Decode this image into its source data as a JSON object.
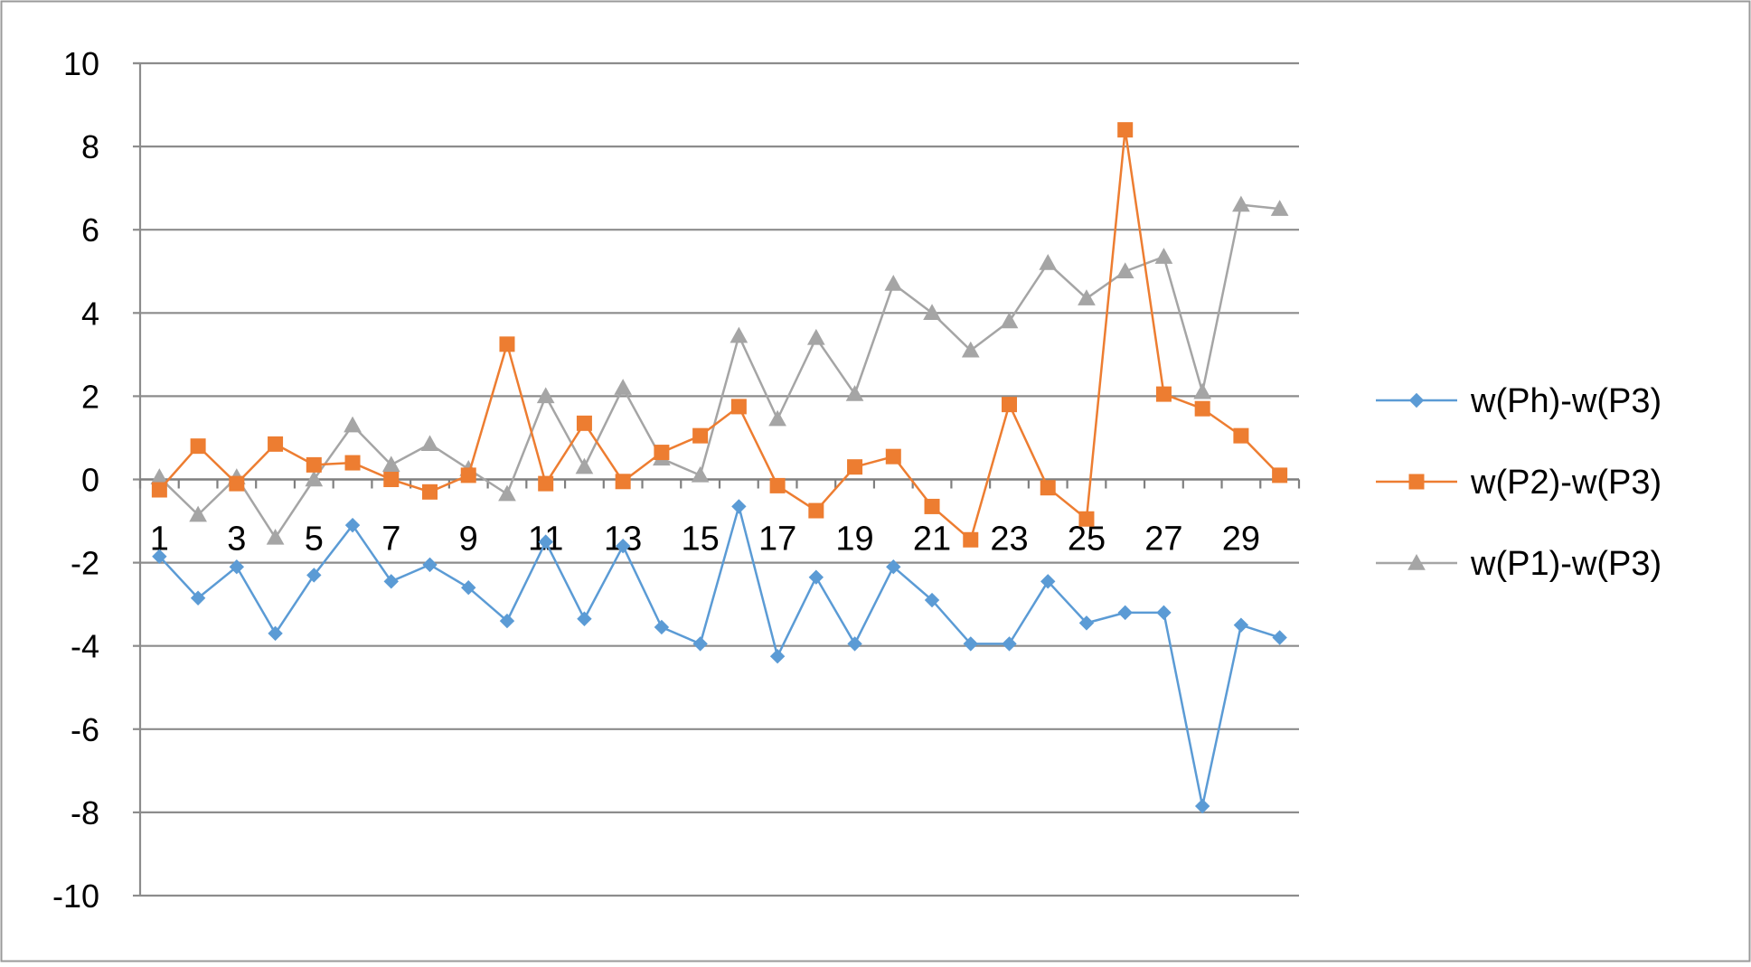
{
  "chart_data": {
    "type": "line",
    "title": "",
    "xlabel": "",
    "ylabel": "",
    "ylim": [
      -10,
      10
    ],
    "yticks": [
      10,
      8,
      6,
      4,
      2,
      0,
      -2,
      -4,
      -6,
      -8,
      -10
    ],
    "ytick_labels": [
      "10",
      "8",
      "6",
      "4",
      "2",
      "0",
      "-2",
      "-4",
      "-6",
      "-8",
      "-10"
    ],
    "x": [
      1,
      2,
      3,
      4,
      5,
      6,
      7,
      8,
      9,
      10,
      11,
      12,
      13,
      14,
      15,
      16,
      17,
      18,
      19,
      20,
      21,
      22,
      23,
      24,
      25,
      26,
      27,
      28,
      29,
      30
    ],
    "xtick_labels": [
      "1",
      "3",
      "5",
      "7",
      "9",
      "11",
      "13",
      "15",
      "17",
      "19",
      "21",
      "23",
      "25",
      "27",
      "29"
    ],
    "grid": true,
    "legend_position": "right",
    "series": [
      {
        "name": "w(Ph)-w(P3)",
        "color": "#5b9bd5",
        "marker": "diamond",
        "values": [
          -1.85,
          -2.85,
          -2.1,
          -3.7,
          -2.3,
          -1.1,
          -2.45,
          -2.05,
          -2.6,
          -3.4,
          -1.5,
          -3.35,
          -1.6,
          -3.55,
          -3.95,
          -0.65,
          -4.25,
          -2.35,
          -3.95,
          -2.1,
          -2.9,
          -3.95,
          -3.95,
          -2.45,
          -3.45,
          -3.2,
          -3.2,
          -7.85,
          -3.5,
          -3.8
        ]
      },
      {
        "name": "w(P2)-w(P3)",
        "color": "#ed7d31",
        "marker": "square",
        "values": [
          -0.25,
          0.8,
          -0.1,
          0.85,
          0.35,
          0.4,
          0.0,
          -0.3,
          0.1,
          3.25,
          -0.1,
          1.35,
          -0.05,
          0.65,
          1.05,
          1.75,
          -0.15,
          -0.75,
          0.3,
          0.55,
          -0.65,
          -1.45,
          1.8,
          -0.2,
          -0.95,
          8.4,
          2.05,
          1.7,
          1.05,
          0.1
        ]
      },
      {
        "name": "w(P1)-w(P3)",
        "color": "#a5a5a5",
        "marker": "triangle",
        "values": [
          0.05,
          -0.85,
          0.05,
          -1.4,
          0.0,
          1.3,
          0.35,
          0.85,
          0.25,
          -0.35,
          2.0,
          0.3,
          2.2,
          0.5,
          0.1,
          3.45,
          1.45,
          3.4,
          2.05,
          4.7,
          4.0,
          3.1,
          3.8,
          5.2,
          4.35,
          5.0,
          5.35,
          2.1,
          6.6,
          6.5
        ]
      }
    ]
  }
}
